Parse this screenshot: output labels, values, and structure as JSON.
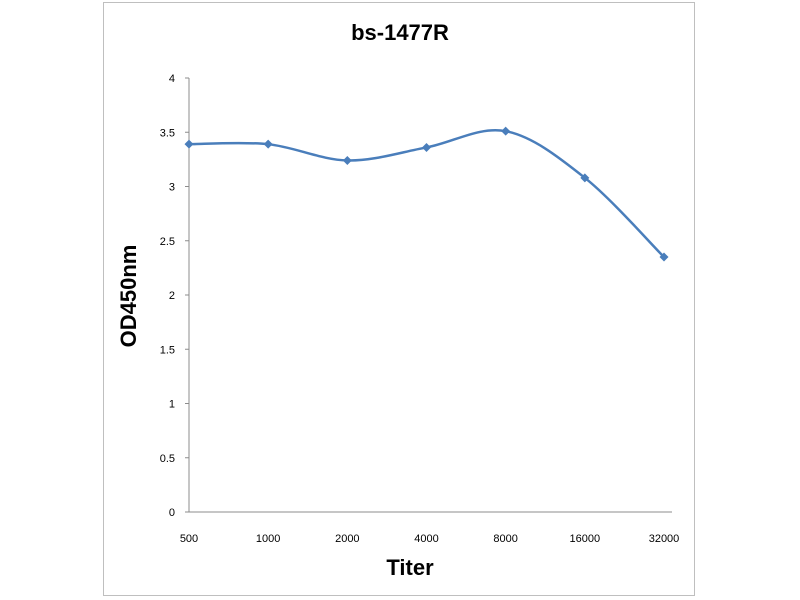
{
  "chart_data": {
    "type": "line",
    "title": "bs-1477R",
    "xlabel": "Titer",
    "ylabel": "OD450nm",
    "categories": [
      "500",
      "1000",
      "2000",
      "4000",
      "8000",
      "16000",
      "32000"
    ],
    "series": [
      {
        "values": [
          3.39,
          3.39,
          3.24,
          3.36,
          3.51,
          3.08,
          2.35
        ]
      }
    ],
    "ylim": [
      0,
      4
    ],
    "yticks": [
      "0",
      "0.5",
      "1",
      "1.5",
      "2",
      "2.5",
      "3",
      "3.5",
      "4"
    ],
    "grid": false,
    "legend": "none",
    "colors": {
      "line": "#4a7ebb",
      "axis": "#8c8c8c",
      "frame": "#bfbfbf"
    }
  }
}
